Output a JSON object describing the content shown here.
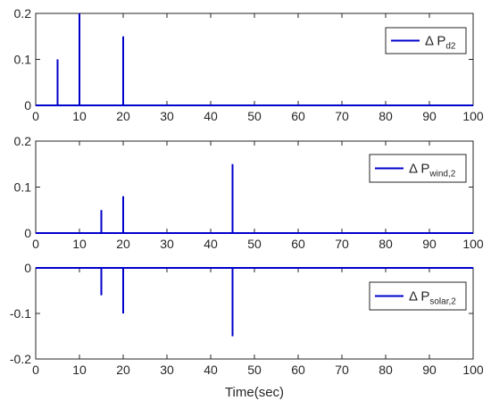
{
  "chart_data": [
    {
      "type": "line",
      "series": [
        {
          "name": "Δ Pd2",
          "color": "#0000cc",
          "x": [
            0,
            5,
            5,
            5,
            10,
            10,
            10,
            20,
            20,
            20,
            100
          ],
          "y": [
            0,
            0,
            0.1,
            0,
            0,
            0.2,
            0,
            0,
            0.15,
            0,
            0
          ]
        }
      ],
      "legend": {
        "main": "Δ P",
        "sub": "d2",
        "placement": "top-right"
      },
      "xlim": [
        0,
        100
      ],
      "ylim": [
        0,
        0.2
      ],
      "xticks": [
        "0",
        "10",
        "20",
        "30",
        "40",
        "50",
        "60",
        "70",
        "80",
        "90",
        "100"
      ],
      "yticks": [
        {
          "value": 0,
          "label": "0"
        },
        {
          "value": 0.1,
          "label": "0.1"
        },
        {
          "value": 0.2,
          "label": "0.2"
        }
      ],
      "grid": false
    },
    {
      "type": "line",
      "series": [
        {
          "name": "Δ Pwind,2",
          "color": "#0000cc",
          "x": [
            0,
            15,
            15,
            15,
            20,
            20,
            20,
            45,
            45,
            45,
            100
          ],
          "y": [
            0,
            0,
            0.05,
            0,
            0,
            0.08,
            0,
            0,
            0.15,
            0,
            0
          ]
        }
      ],
      "legend": {
        "main": "Δ P",
        "sub": "wind,2",
        "placement": "top-right"
      },
      "xlim": [
        0,
        100
      ],
      "ylim": [
        0,
        0.2
      ],
      "xticks": [
        "0",
        "10",
        "20",
        "30",
        "40",
        "50",
        "60",
        "70",
        "80",
        "90",
        "100"
      ],
      "yticks": [
        {
          "value": 0,
          "label": "0"
        },
        {
          "value": 0.1,
          "label": "0.1"
        },
        {
          "value": 0.2,
          "label": "0.2"
        }
      ],
      "grid": false
    },
    {
      "type": "line",
      "series": [
        {
          "name": "Δ Psolar,2",
          "color": "#0000cc",
          "x": [
            0,
            15,
            15,
            15,
            20,
            20,
            20,
            45,
            45,
            45,
            100
          ],
          "y": [
            0,
            0,
            -0.06,
            0,
            0,
            -0.1,
            0,
            0,
            -0.15,
            0,
            0
          ]
        }
      ],
      "legend": {
        "main": "Δ P",
        "sub": "solar,2",
        "placement": "top-right"
      },
      "xlabel": "Time(sec)",
      "xlim": [
        0,
        100
      ],
      "ylim": [
        -0.2,
        0
      ],
      "xticks": [
        "0",
        "10",
        "20",
        "30",
        "40",
        "50",
        "60",
        "70",
        "80",
        "90",
        "100"
      ],
      "yticks": [
        {
          "value": -0.2,
          "label": "-0.2"
        },
        {
          "value": -0.1,
          "label": "-0.1"
        },
        {
          "value": 0,
          "label": "0"
        }
      ],
      "grid": false
    }
  ]
}
